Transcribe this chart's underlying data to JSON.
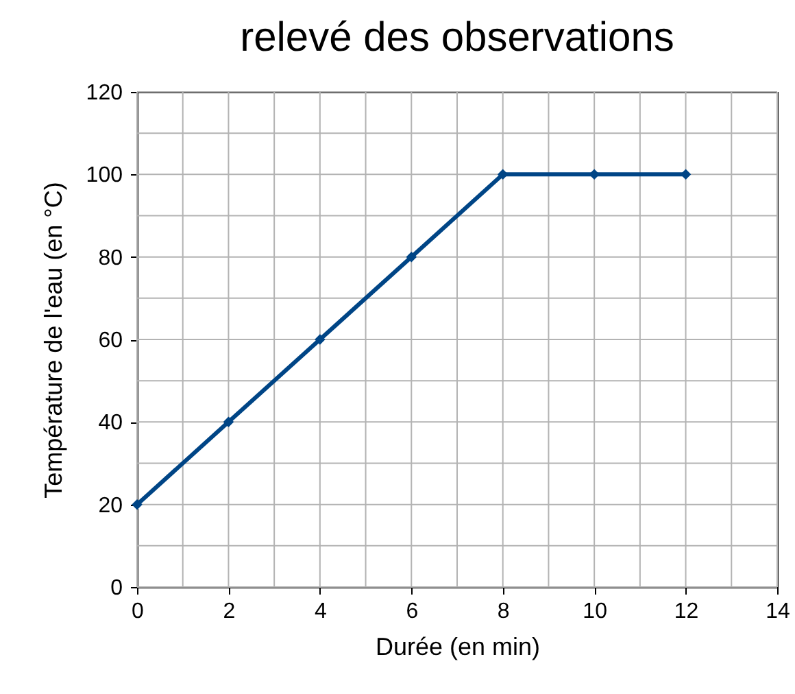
{
  "chart_data": {
    "type": "line",
    "title": "relevé des observations",
    "xlabel": "Durée (en min)",
    "ylabel": "Température de l'eau (en °C)",
    "x": [
      0,
      2,
      4,
      6,
      8,
      10,
      12
    ],
    "series": [
      {
        "color": "#004586",
        "values": [
          20,
          40,
          60,
          80,
          100,
          100,
          100
        ]
      }
    ],
    "xlim": [
      0,
      14
    ],
    "ylim": [
      0,
      120
    ],
    "xticks": [
      0,
      {
        "value": 1,
        "label": null
      },
      2,
      {
        "value": 3,
        "label": null
      },
      4,
      {
        "value": 5,
        "label": null
      },
      6,
      {
        "value": 7,
        "label": null
      },
      8,
      {
        "value": 9,
        "label": null
      },
      10,
      {
        "value": 11,
        "label": null
      },
      12,
      {
        "value": 13,
        "label": null
      },
      14
    ],
    "yticks": [
      0,
      {
        "value": 10,
        "label": null
      },
      20,
      {
        "value": 30,
        "label": null
      },
      40,
      {
        "value": 50,
        "label": null
      },
      60,
      {
        "value": 70,
        "label": null
      },
      80,
      {
        "value": 90,
        "label": null
      },
      100,
      {
        "value": 110,
        "label": null
      },
      120
    ],
    "grid": true,
    "marker": "diamond",
    "line_style": "solid",
    "legend": false
  }
}
